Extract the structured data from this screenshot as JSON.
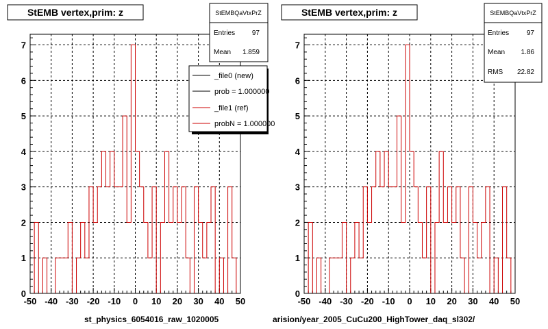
{
  "panels": [
    {
      "title": "StEMB  vertex,prim: z",
      "stats": {
        "name": "StEMBQaVtxPrZ",
        "rows": [
          {
            "label": "Entries",
            "value": "97"
          },
          {
            "label": "Mean",
            "value": "1.859"
          }
        ]
      },
      "legend": [
        {
          "label": "_file0 (new)",
          "color": "#000000"
        },
        {
          "label": "prob = 1.000000",
          "color": "#000000"
        },
        {
          "label": "_file1 (ref)",
          "color": "#cc0000"
        },
        {
          "label": "probN = 1.000000",
          "color": "#cc0000"
        }
      ],
      "footer": "st_physics_6054016_raw_1020005"
    },
    {
      "title": "StEMB  vertex,prim: z",
      "stats": {
        "name": "StEMBQaVtxPrZ",
        "rows": [
          {
            "label": "Entries",
            "value": "97"
          },
          {
            "label": "Mean",
            "value": "1.86"
          },
          {
            "label": "RMS",
            "value": "22.82"
          }
        ]
      },
      "legend": [],
      "footer": "arision/year_2005_CuCu200_HighTower_daq_sl302/"
    }
  ],
  "chart_data": [
    {
      "type": "histogram-step",
      "title": "StEMB  vertex,prim: z",
      "xlabel": "",
      "ylabel": "",
      "xlim": [
        -50,
        50
      ],
      "ylim": [
        0,
        7.3
      ],
      "x_ticks": [
        -50,
        -40,
        -30,
        -20,
        -10,
        0,
        10,
        20,
        30,
        40,
        50
      ],
      "y_ticks": [
        0,
        1,
        2,
        3,
        4,
        5,
        6,
        7
      ],
      "grid": true,
      "bin_width": 2,
      "bin_edges_start": -50,
      "series": [
        {
          "name": "_file1 (ref)",
          "color": "#cc0000",
          "values": [
            0,
            2,
            0,
            1,
            0,
            0,
            1,
            1,
            1,
            2,
            0,
            1,
            2,
            1,
            3,
            2,
            3,
            4,
            3,
            4,
            3,
            3,
            5,
            2,
            7,
            4,
            3,
            2,
            1,
            3,
            0,
            2,
            4,
            2,
            3,
            2,
            3,
            1,
            0,
            3,
            2,
            1,
            2,
            3,
            0,
            1,
            0,
            3,
            1,
            0
          ]
        }
      ]
    },
    {
      "type": "histogram-step",
      "title": "StEMB  vertex,prim: z",
      "xlabel": "",
      "ylabel": "",
      "xlim": [
        -50,
        50
      ],
      "ylim": [
        0,
        7.3
      ],
      "x_ticks": [
        -50,
        -40,
        -30,
        -20,
        -10,
        0,
        10,
        20,
        30,
        40,
        50
      ],
      "y_ticks": [
        0,
        1,
        2,
        3,
        4,
        5,
        6,
        7
      ],
      "grid": true,
      "bin_width": 2,
      "bin_edges_start": -50,
      "series": [
        {
          "name": "",
          "color": "#cc0000",
          "values": [
            0,
            2,
            0,
            1,
            0,
            0,
            1,
            1,
            1,
            2,
            0,
            1,
            2,
            1,
            3,
            2,
            3,
            4,
            3,
            4,
            3,
            3,
            5,
            2,
            7,
            4,
            3,
            2,
            1,
            3,
            0,
            2,
            4,
            2,
            3,
            2,
            3,
            1,
            0,
            3,
            2,
            1,
            2,
            3,
            0,
            1,
            0,
            3,
            1,
            0
          ]
        }
      ]
    }
  ]
}
